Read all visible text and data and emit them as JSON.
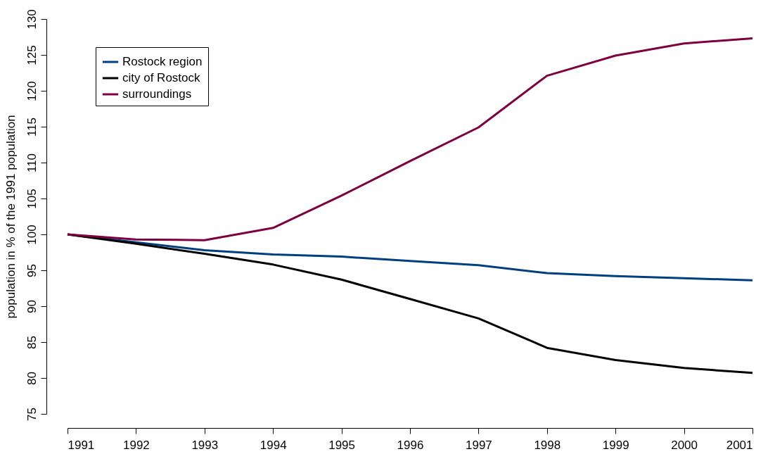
{
  "chart_data": {
    "type": "line",
    "ylabel": "population in % of the 1991 population",
    "x": [
      1991,
      1992,
      1993,
      1994,
      1995,
      1996,
      1997,
      1998,
      1999,
      2000,
      2001
    ],
    "series": [
      {
        "name": "Rostock region",
        "color": "#003f7f",
        "values": [
          100,
          98.9,
          97.8,
          97.2,
          96.9,
          96.3,
          95.7,
          94.6,
          94.2,
          93.9,
          93.6
        ]
      },
      {
        "name": "city of Rostock",
        "color": "#000000",
        "values": [
          100,
          98.7,
          97.3,
          95.8,
          93.7,
          91.0,
          88.3,
          84.2,
          82.5,
          81.4,
          80.7
        ]
      },
      {
        "name": "surroundings",
        "color": "#7f003f",
        "values": [
          100,
          99.3,
          99.2,
          100.9,
          105.4,
          110.2,
          114.9,
          122.1,
          124.9,
          126.6,
          127.3
        ]
      }
    ],
    "xlim": [
      1991,
      2001
    ],
    "xticks": [
      1991,
      1992,
      1993,
      1994,
      1995,
      1996,
      1997,
      1998,
      1999,
      2000,
      2001
    ],
    "ylim": [
      75,
      130
    ],
    "yticks": [
      75,
      80,
      85,
      90,
      95,
      100,
      105,
      110,
      115,
      120,
      125,
      130
    ],
    "grid": false,
    "legend": "top left",
    "marker": "none",
    "line_style": "solid"
  }
}
